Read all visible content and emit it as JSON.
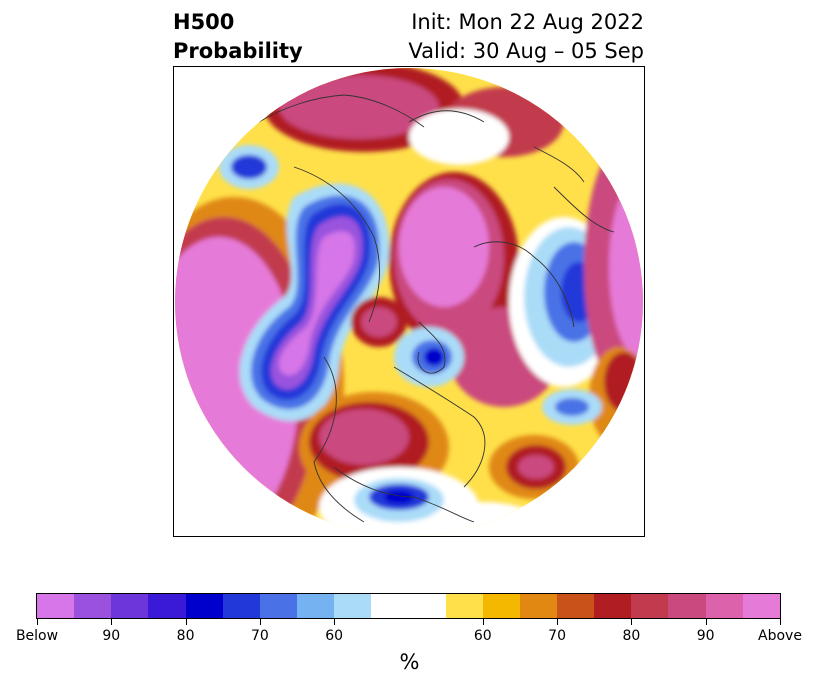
{
  "title": {
    "left_line1": "H500",
    "left_line2": "Probability",
    "right_line1": "Init: Mon 22 Aug 2022",
    "right_line2": "Valid: 30 Aug – 05 Sep"
  },
  "map": {
    "projection": "north-polar-stereographic",
    "regions": [
      {
        "name": "anomaly-above-north-pacific",
        "category": "above"
      },
      {
        "name": "anomaly-below-west-canada-alaska",
        "category": "below"
      },
      {
        "name": "anomaly-above-east-pacific",
        "category": "above"
      },
      {
        "name": "anomaly-above-siberia",
        "category": "above"
      },
      {
        "name": "anomaly-below-europe",
        "category": "below"
      },
      {
        "name": "anomaly-below-greenland",
        "category": "below"
      },
      {
        "name": "anomaly-above-north-atlantic",
        "category": "above"
      },
      {
        "name": "anomaly-below-gulf-of-mexico",
        "category": "below"
      }
    ]
  },
  "colorbar": {
    "colors": [
      "#d676e8",
      "#9a52de",
      "#6c36da",
      "#3a1ad6",
      "#0000cc",
      "#2238d8",
      "#4a72e6",
      "#74b2f2",
      "#aadcf8",
      "#ffffff",
      "#ffe04a",
      "#f4b800",
      "#e08812",
      "#c8521a",
      "#b01e22",
      "#c23a4e",
      "#ca4a7e",
      "#dc62ac",
      "#e67ad8"
    ],
    "widths": [
      1,
      1,
      1,
      1,
      1,
      1,
      1,
      1,
      1,
      2,
      1,
      1,
      1,
      1,
      1,
      1,
      1,
      1,
      1
    ],
    "tick_labels": [
      "Below",
      "90",
      "80",
      "70",
      "60",
      "60",
      "70",
      "80",
      "90",
      "Above"
    ],
    "tick_positions_frac": [
      0,
      0.1,
      0.2,
      0.3,
      0.4,
      0.6,
      0.7,
      0.8,
      0.9,
      1.0
    ],
    "unit": "%"
  }
}
